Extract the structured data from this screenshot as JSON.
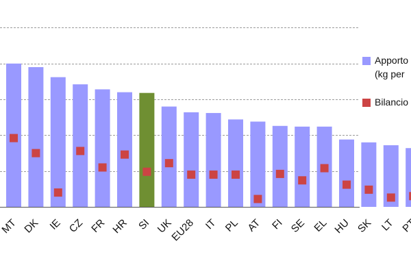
{
  "chart_data": {
    "type": "bar",
    "categories": [
      "MT",
      "DK",
      "IE",
      "CZ",
      "FR",
      "HR",
      "SI",
      "UK",
      "EU28",
      "IT",
      "PL",
      "AT",
      "FI",
      "SE",
      "EL",
      "HU",
      "SK",
      "LT",
      "PT"
    ],
    "series": [
      {
        "name": "Apporto (kg per ettaro)",
        "kind": "bar",
        "values": [
          200,
          195,
          181,
          171,
          164,
          160,
          159,
          140,
          132,
          131,
          122,
          119,
          113,
          112,
          112,
          94,
          90,
          86,
          82
        ],
        "highlight": {
          "category": "SI",
          "color": "#6f8f32"
        }
      },
      {
        "name": "Bilancio",
        "kind": "marker",
        "values": [
          96,
          75,
          20,
          78,
          55,
          73,
          49,
          61,
          45,
          45,
          45,
          11,
          46,
          37,
          54,
          31,
          24,
          13,
          15
        ]
      }
    ],
    "legend": [
      {
        "label_line1": "Apporto",
        "label_line2": "(kg per",
        "color": "#9999ff"
      },
      {
        "label_line1": "Bilancio",
        "label_line2": "",
        "color": "#cc4444"
      }
    ],
    "title": "",
    "xlabel": "",
    "ylabel": "",
    "ylim": [
      0,
      260
    ],
    "gridlines": [
      50,
      100,
      150,
      200,
      250
    ],
    "grid": true,
    "legend_position": "right",
    "colors": {
      "bar": "#9999ff",
      "highlight": "#6f8f32",
      "marker": "#cc4444",
      "grid": "#999999",
      "axis": "#555555"
    }
  }
}
